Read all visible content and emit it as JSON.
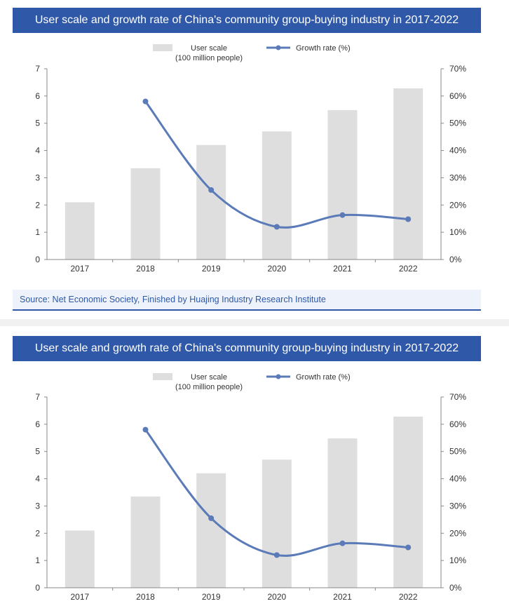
{
  "chart_data": [
    {
      "type": "bar+line",
      "title": "User scale and growth rate of China's community group-buying industry in 2017-2022",
      "categories": [
        "2017",
        "2018",
        "2019",
        "2020",
        "2021",
        "2022"
      ],
      "series": [
        {
          "name": "User scale",
          "unit_line": "(100 million people)",
          "type": "bar",
          "axis": "left",
          "color": "#dedede",
          "values": [
            2.1,
            3.35,
            4.2,
            4.7,
            5.48,
            6.28
          ]
        },
        {
          "name": "Growth rate (%)",
          "type": "line",
          "axis": "right",
          "color": "#5a7ab8",
          "values": [
            null,
            58.0,
            25.5,
            12.0,
            16.3,
            14.8
          ]
        }
      ],
      "y_left": {
        "min": 0,
        "max": 7,
        "ticks": [
          "0",
          "1",
          "2",
          "3",
          "4",
          "5",
          "6",
          "7"
        ]
      },
      "y_right": {
        "min": 0,
        "max": 70,
        "ticks": [
          "0%",
          "10%",
          "20%",
          "30%",
          "40%",
          "50%",
          "60%",
          "70%"
        ]
      },
      "legend": "top-center",
      "grid": false,
      "source": "Source: Net Economic Society, Finished by Huajing Industry Research Institute"
    },
    {
      "type": "bar+line",
      "title": "User scale and growth rate of China's community group-buying industry in 2017-2022",
      "categories": [
        "2017",
        "2018",
        "2019",
        "2020",
        "2021",
        "2022"
      ],
      "series": [
        {
          "name": "User scale",
          "unit_line": "(100 million people)",
          "type": "bar",
          "axis": "left",
          "color": "#dedede",
          "values": [
            2.1,
            3.35,
            4.2,
            4.7,
            5.48,
            6.28
          ]
        },
        {
          "name": "Growth rate (%)",
          "type": "line",
          "axis": "right",
          "color": "#5a7ab8",
          "values": [
            null,
            58.0,
            25.5,
            12.0,
            16.3,
            14.8
          ]
        }
      ],
      "y_left": {
        "min": 0,
        "max": 7,
        "ticks": [
          "0",
          "1",
          "2",
          "3",
          "4",
          "5",
          "6",
          "7"
        ]
      },
      "y_right": {
        "min": 0,
        "max": 70,
        "ticks": [
          "0%",
          "10%",
          "20%",
          "30%",
          "40%",
          "50%",
          "60%",
          "70%"
        ]
      },
      "legend": "top-center",
      "grid": false
    }
  ]
}
